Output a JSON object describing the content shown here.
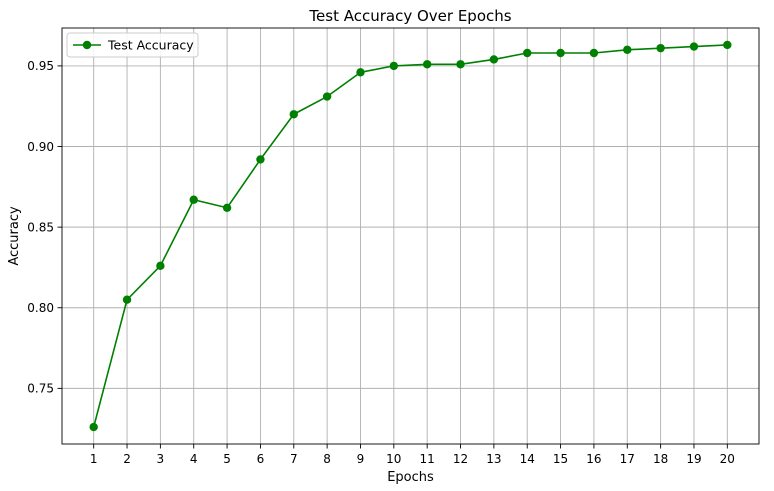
{
  "chart_data": {
    "type": "line",
    "title": "Test Accuracy Over Epochs",
    "xlabel": "Epochs",
    "ylabel": "Accuracy",
    "x": [
      1,
      2,
      3,
      4,
      5,
      6,
      7,
      8,
      9,
      10,
      11,
      12,
      13,
      14,
      15,
      16,
      17,
      18,
      19,
      20
    ],
    "xlim": [
      0.05,
      20.95
    ],
    "ylim": [
      0.7155,
      0.9735
    ],
    "yticks": [
      "0.75",
      "0.80",
      "0.85",
      "0.90",
      "0.95"
    ],
    "ytick_values": [
      0.75,
      0.8,
      0.85,
      0.9,
      0.95
    ],
    "grid": true,
    "legend_position": "top-left",
    "series": [
      {
        "name": "Test Accuracy",
        "color": "#008000",
        "marker": "circle",
        "values": [
          0.726,
          0.805,
          0.826,
          0.867,
          0.862,
          0.892,
          0.92,
          0.931,
          0.946,
          0.95,
          0.951,
          0.951,
          0.954,
          0.958,
          0.958,
          0.958,
          0.96,
          0.961,
          0.962,
          0.963
        ]
      }
    ]
  }
}
